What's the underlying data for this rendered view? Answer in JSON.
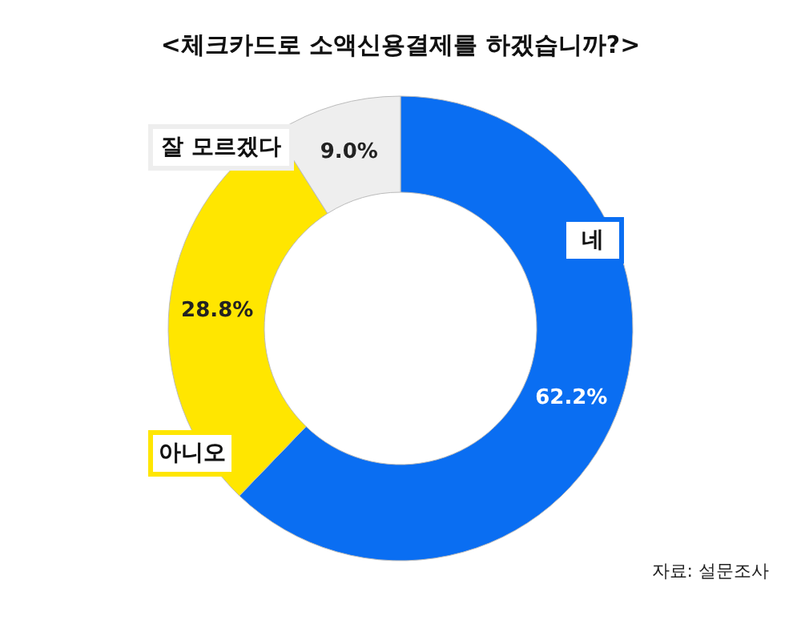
{
  "chart_data": {
    "type": "donut",
    "title": "<체크카드로 소액신용결제를 하겠습니까?>",
    "categories": [
      "네",
      "아니오",
      "잘 모르겠다"
    ],
    "values": [
      62.2,
      28.8,
      9.0
    ],
    "colors": [
      "#0a6ef2",
      "#ffe600",
      "#eeeeee"
    ],
    "value_labels": [
      "62.2%",
      "28.8%",
      "9.0%"
    ],
    "legend": false,
    "annotations": [
      "자료: 설문조사"
    ]
  }
}
